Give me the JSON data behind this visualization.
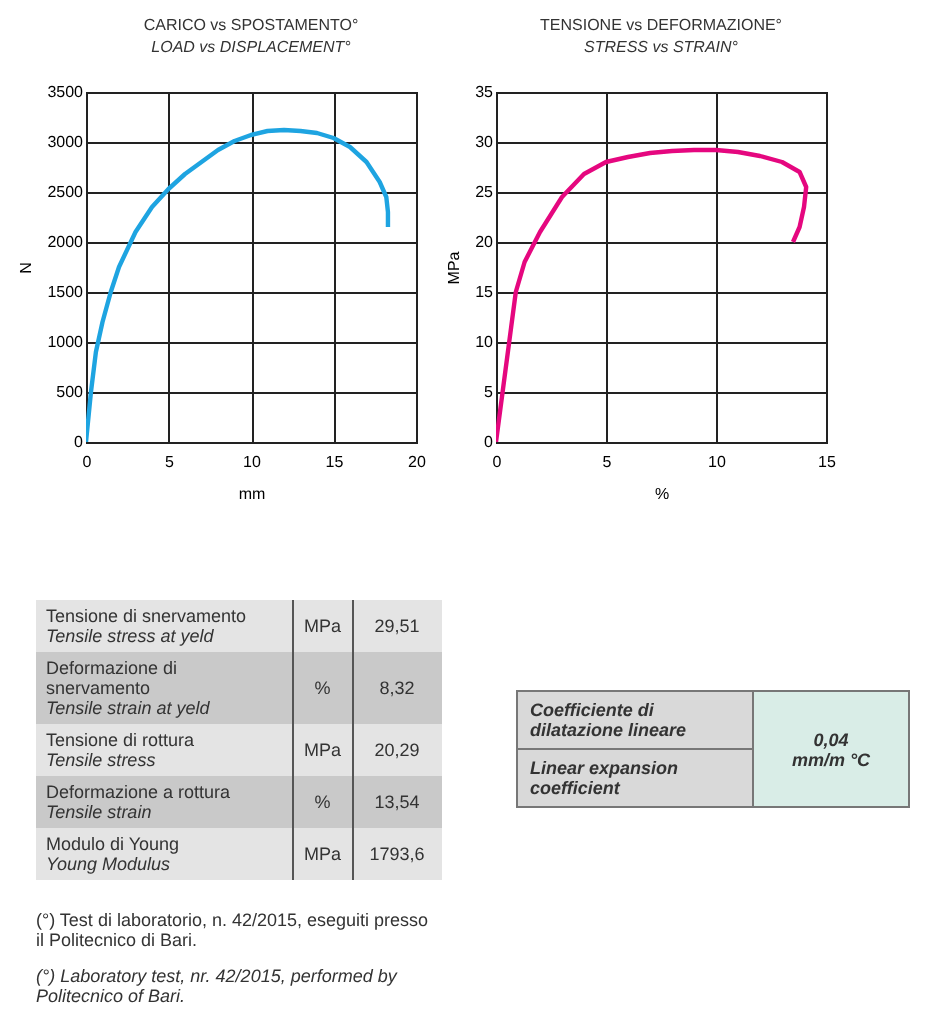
{
  "chart_data": [
    {
      "type": "line",
      "title": "CARICO vs SPOSTAMENTO°",
      "subtitle": "LOAD vs DISPLACEMENT°",
      "xlabel": "mm",
      "ylabel": "N",
      "x": [
        0,
        0.3,
        0.6,
        1,
        1.5,
        2,
        3,
        4,
        5,
        6,
        7,
        8,
        9,
        10,
        11,
        12,
        13,
        14,
        15,
        16,
        17,
        17.8,
        18.2,
        18.3,
        18.3
      ],
      "series": [
        {
          "color": "#1ea4e1",
          "values": [
            0,
            500,
            900,
            1200,
            1500,
            1750,
            2100,
            2350,
            2530,
            2680,
            2800,
            2920,
            3010,
            3070,
            3110,
            3120,
            3110,
            3090,
            3040,
            2950,
            2800,
            2600,
            2450,
            2300,
            2150
          ]
        }
      ],
      "xlim": [
        0,
        20
      ],
      "xticks": [
        0,
        5,
        10,
        15,
        20
      ],
      "ylim": [
        0,
        3500
      ],
      "yticks": [
        0,
        500,
        1000,
        1500,
        2000,
        2500,
        3000,
        3500
      ],
      "grid": true
    },
    {
      "type": "line",
      "title": "TENSIONE vs DEFORMAZIONE°",
      "subtitle": "STRESS vs STRAIN°",
      "xlabel": "%",
      "ylabel": "MPa",
      "x": [
        0,
        0.3,
        0.6,
        0.9,
        1.3,
        2,
        3,
        4,
        5,
        6,
        7,
        8,
        9,
        10,
        11,
        12,
        13,
        13.8,
        14.1,
        14,
        13.8,
        13.5
      ],
      "series": [
        {
          "color": "#e5077f",
          "values": [
            0,
            5,
            10,
            15,
            18,
            21,
            24.5,
            26.8,
            28,
            28.5,
            28.9,
            29.1,
            29.2,
            29.2,
            29,
            28.6,
            28,
            27,
            25.5,
            23.5,
            21.5,
            20
          ]
        }
      ],
      "xlim": [
        0,
        15
      ],
      "xticks": [
        0,
        5,
        10,
        15
      ],
      "ylim": [
        0,
        35
      ],
      "yticks": [
        0,
        5,
        10,
        15,
        20,
        25,
        30,
        35
      ],
      "grid": true
    },
    {
      "type": "other",
      "annotations": [
        "Tensione di snervamento",
        "Tensile stress at yeld",
        "MPa",
        "29,51",
        "Deformazione di snervamento",
        "Tensile strain at yeld",
        "%",
        "8,32",
        "Tensione di rottura",
        "Tensile stress",
        "MPa",
        "20,29",
        "Deformazione a rottura",
        "Tensile strain",
        "%",
        "13,54",
        "Modulo di Young",
        "Young Modulus",
        "MPa",
        "1793,6"
      ]
    },
    {
      "type": "other",
      "annotations": [
        "(°) Test di laboratorio, n. 42/2015, eseguiti presso il Politecnico di Bari.",
        "(°) Laboratory test, nr. 42/2015, performed by Politecnico of Bari."
      ]
    },
    {
      "type": "other",
      "annotations": [
        "Coefficiente di dilatazione lineare",
        "Linear expansion coefficient",
        "0,04",
        "mm/m °C"
      ]
    }
  ]
}
